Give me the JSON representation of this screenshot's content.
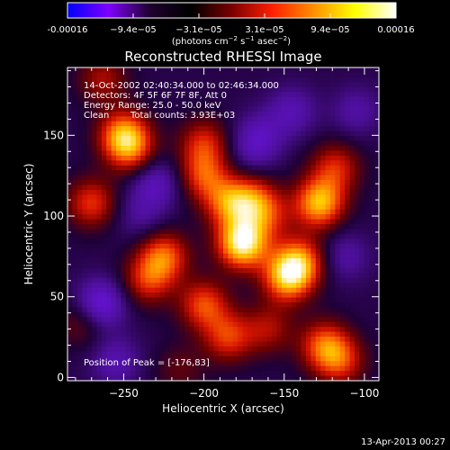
{
  "colorbar": {
    "tick_labels": [
      "-0.00016",
      "−9.4e−05",
      "−3.1e−05",
      "3.1e−05",
      "9.4e−05",
      "0.00016"
    ],
    "units": "(photons cm",
    "units_exp1": "−2",
    "units_mid": " s",
    "units_exp2": "−1",
    "units_end": " asec",
    "units_exp3": "−2",
    "units_close": ")",
    "colors": [
      "#0000ff",
      "#7f00ff",
      "#200030",
      "#000000",
      "#7a0000",
      "#ff2000",
      "#ff9000",
      "#ffff00",
      "#ffffff"
    ]
  },
  "image": {
    "title": "Reconstructed RHESSI Image",
    "info": {
      "line1": "14-Oct-2002 02:40:34.000 to 02:46:34.000",
      "line2": "Detectors: 4F 5F 6F 7F 8F, Att 0",
      "line3": "Energy Range: 25.0 - 50.0 keV",
      "line4_a": "Clean",
      "line4_b": "Total counts: 3.93E+03"
    },
    "peak_label": "Position of Peak = [-176,83]"
  },
  "footer": {
    "timestamp": "13-Apr-2013 00:27"
  },
  "chart_data": {
    "type": "heatmap",
    "title": "Reconstructed RHESSI Image",
    "xlabel": "Heliocentric X (arcsec)",
    "ylabel": "Heliocentric Y (arcsec)",
    "xlim": [
      -285,
      -91
    ],
    "ylim": [
      -2,
      192
    ],
    "xticks": [
      -250,
      -200,
      -150,
      -100
    ],
    "xtick_labels": [
      "−250",
      "−200",
      "−150",
      "−100"
    ],
    "yticks": [
      0,
      50,
      100,
      150
    ],
    "ytick_labels": [
      "0",
      "50",
      "100",
      "150"
    ],
    "colorbar_range": [
      -0.00016,
      0.00016
    ],
    "peak": {
      "x": -176,
      "y": 83
    },
    "sources": [
      {
        "x": -176,
        "y": 83,
        "v": 1.0
      },
      {
        "x": -185,
        "y": 108,
        "v": 0.55
      },
      {
        "x": -200,
        "y": 125,
        "v": 0.5
      },
      {
        "x": -200,
        "y": 145,
        "v": 0.45
      },
      {
        "x": -170,
        "y": 110,
        "v": 0.5
      },
      {
        "x": -160,
        "y": 100,
        "v": 0.35
      },
      {
        "x": -148,
        "y": 62,
        "v": 0.75
      },
      {
        "x": -140,
        "y": 72,
        "v": 0.6
      },
      {
        "x": -128,
        "y": 108,
        "v": 0.8
      },
      {
        "x": -118,
        "y": 130,
        "v": 0.45
      },
      {
        "x": -125,
        "y": 20,
        "v": 0.55
      },
      {
        "x": -115,
        "y": 10,
        "v": 0.45
      },
      {
        "x": -160,
        "y": 30,
        "v": 0.35
      },
      {
        "x": -200,
        "y": 45,
        "v": 0.55
      },
      {
        "x": -185,
        "y": 25,
        "v": 0.5
      },
      {
        "x": -225,
        "y": 75,
        "v": 0.6
      },
      {
        "x": -235,
        "y": 60,
        "v": 0.45
      },
      {
        "x": -250,
        "y": 150,
        "v": 0.7
      },
      {
        "x": -245,
        "y": 140,
        "v": 0.4
      },
      {
        "x": -270,
        "y": 108,
        "v": 0.5
      },
      {
        "x": -275,
        "y": 35,
        "v": 0.3
      },
      {
        "x": -263,
        "y": 185,
        "v": 0.35
      },
      {
        "x": -215,
        "y": 5,
        "v": 0.2
      },
      {
        "x": -265,
        "y": 45,
        "v": -0.55
      },
      {
        "x": -145,
        "y": 165,
        "v": -0.3
      },
      {
        "x": -230,
        "y": 120,
        "v": -0.35
      },
      {
        "x": -255,
        "y": 10,
        "v": -0.3
      },
      {
        "x": -105,
        "y": 165,
        "v": -0.25
      },
      {
        "x": -165,
        "y": 150,
        "v": -0.25
      },
      {
        "x": -112,
        "y": 75,
        "v": -0.25
      },
      {
        "x": -240,
        "y": 100,
        "v": -0.2
      },
      {
        "x": -170,
        "y": 140,
        "v": -0.2
      }
    ]
  }
}
